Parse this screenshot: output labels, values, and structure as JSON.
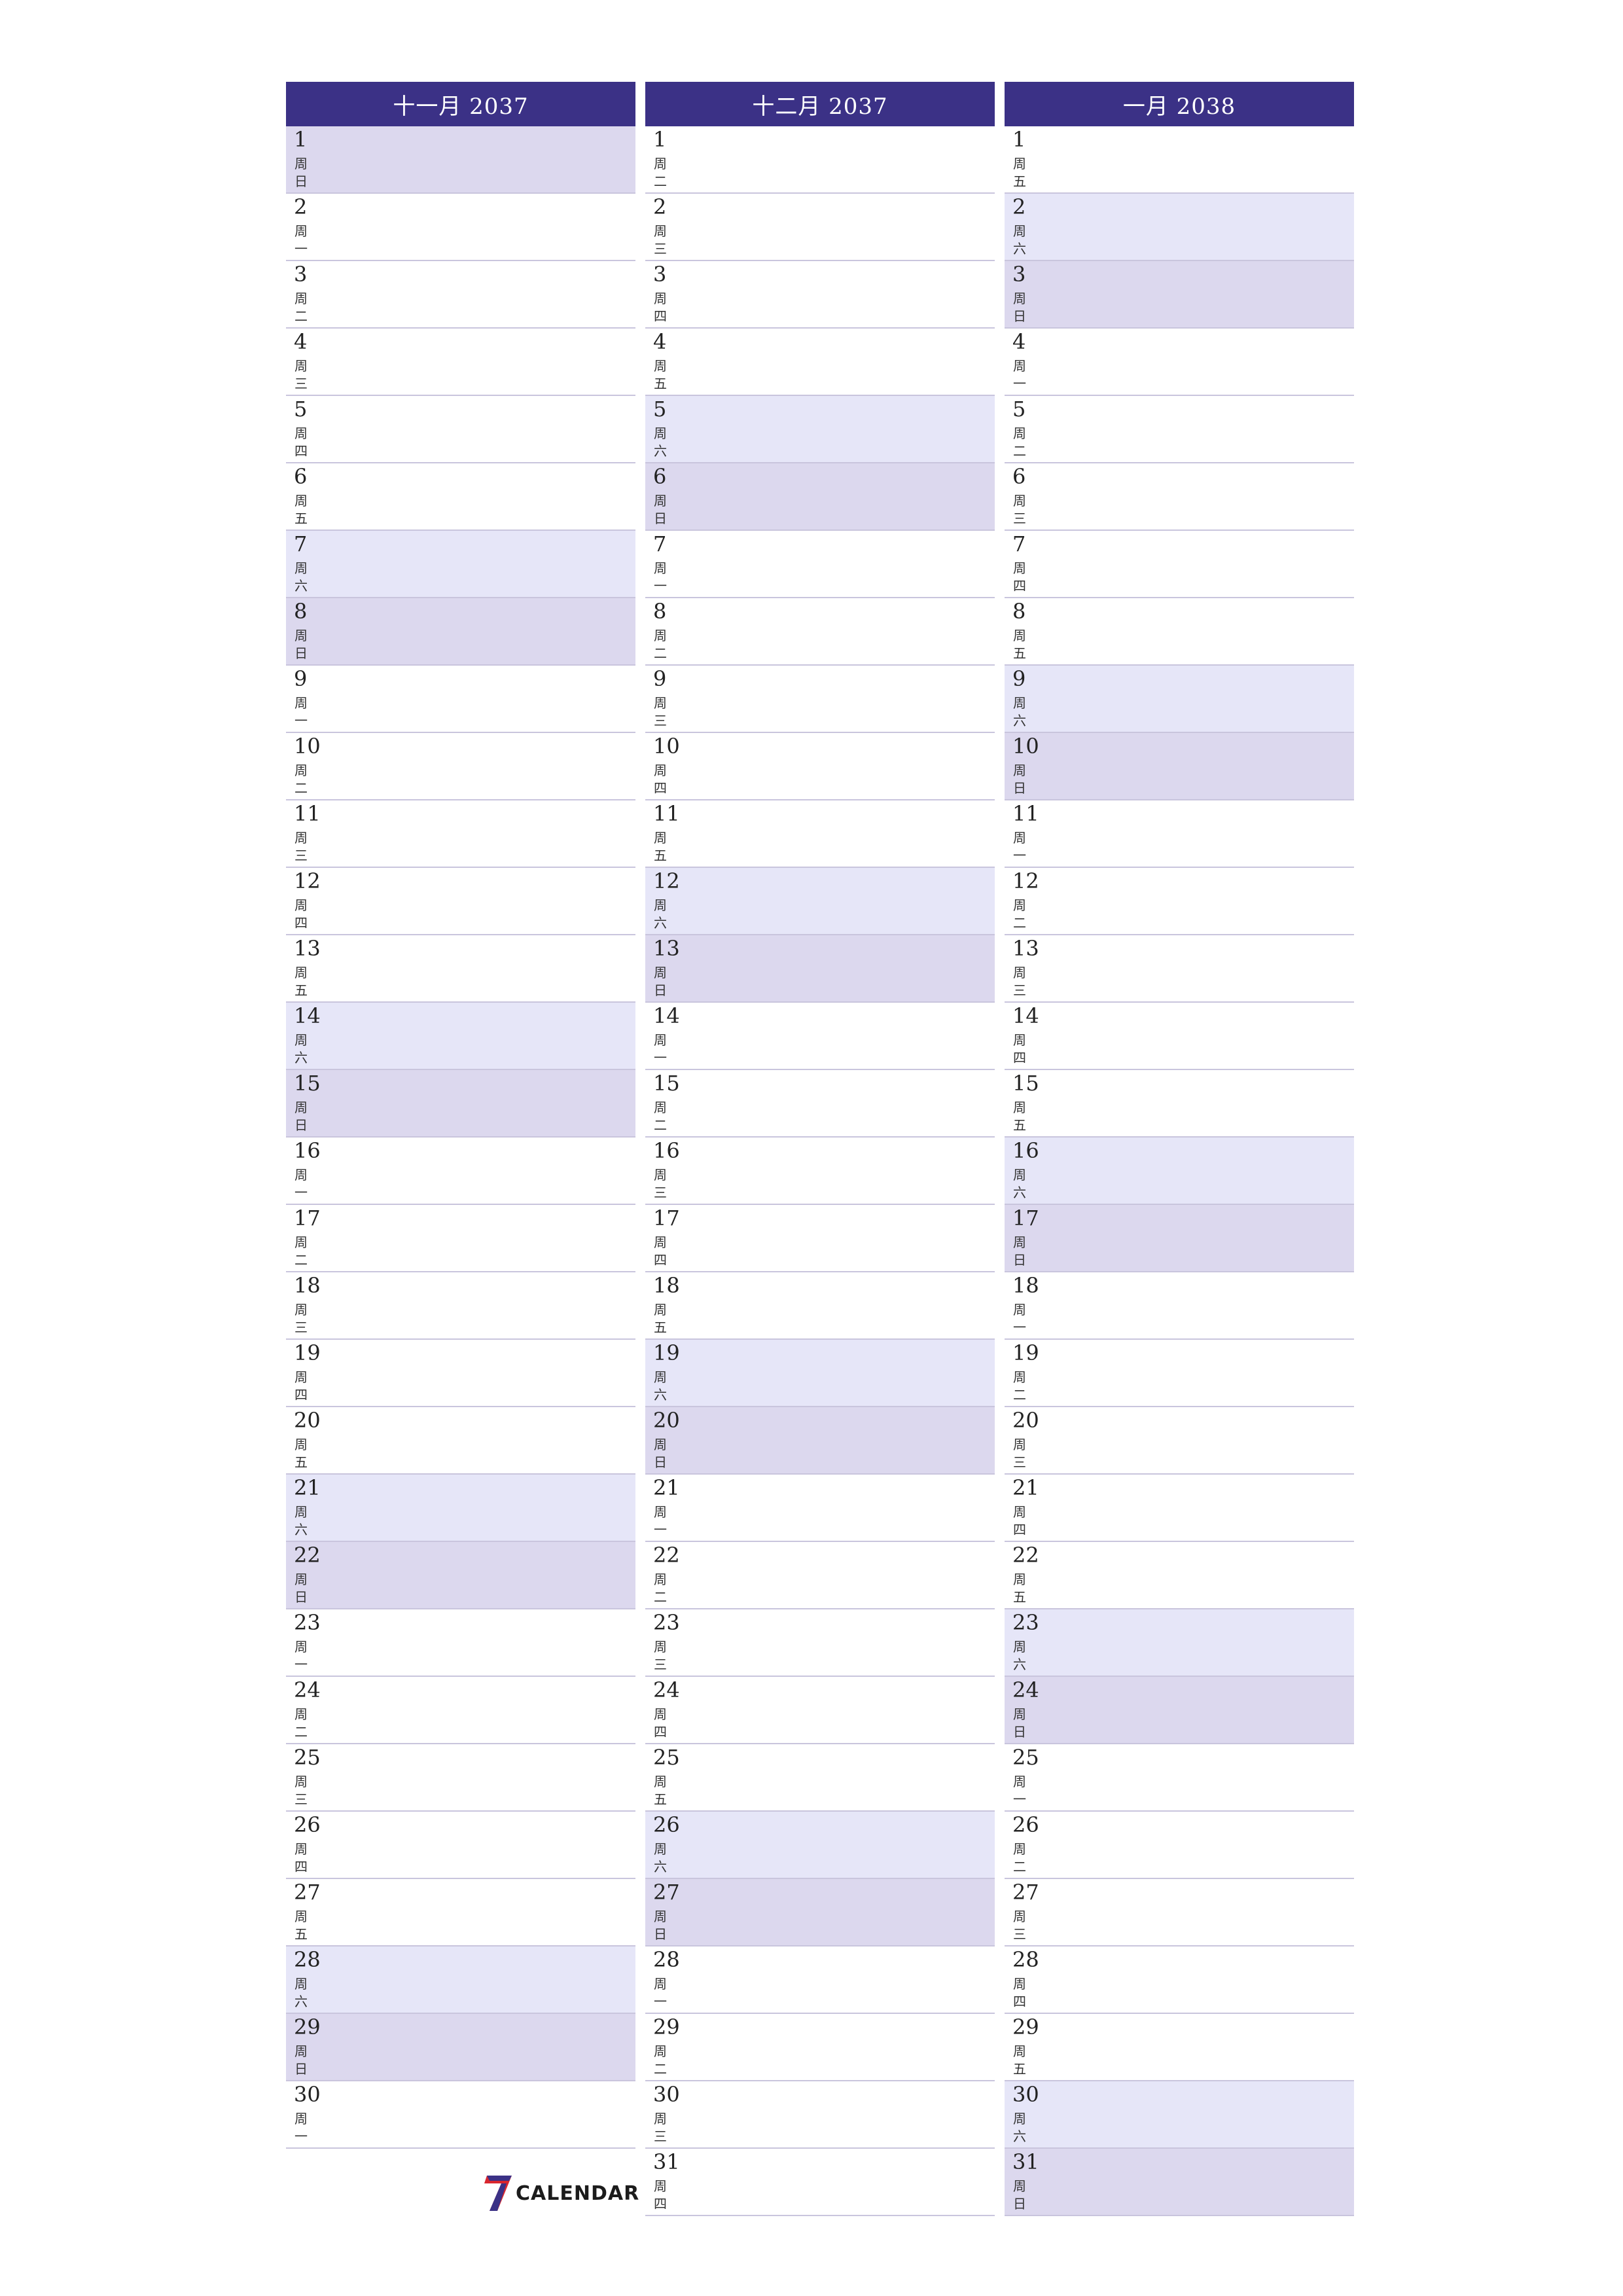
{
  "months": [
    {
      "title": "十一月 2037",
      "days": [
        {
          "num": "1",
          "wd": "周日",
          "type": "sun"
        },
        {
          "num": "2",
          "wd": "周一",
          "type": ""
        },
        {
          "num": "3",
          "wd": "周二",
          "type": ""
        },
        {
          "num": "4",
          "wd": "周三",
          "type": ""
        },
        {
          "num": "5",
          "wd": "周四",
          "type": ""
        },
        {
          "num": "6",
          "wd": "周五",
          "type": ""
        },
        {
          "num": "7",
          "wd": "周六",
          "type": "sat"
        },
        {
          "num": "8",
          "wd": "周日",
          "type": "sun"
        },
        {
          "num": "9",
          "wd": "周一",
          "type": ""
        },
        {
          "num": "10",
          "wd": "周二",
          "type": ""
        },
        {
          "num": "11",
          "wd": "周三",
          "type": ""
        },
        {
          "num": "12",
          "wd": "周四",
          "type": ""
        },
        {
          "num": "13",
          "wd": "周五",
          "type": ""
        },
        {
          "num": "14",
          "wd": "周六",
          "type": "sat"
        },
        {
          "num": "15",
          "wd": "周日",
          "type": "sun"
        },
        {
          "num": "16",
          "wd": "周一",
          "type": ""
        },
        {
          "num": "17",
          "wd": "周二",
          "type": ""
        },
        {
          "num": "18",
          "wd": "周三",
          "type": ""
        },
        {
          "num": "19",
          "wd": "周四",
          "type": ""
        },
        {
          "num": "20",
          "wd": "周五",
          "type": ""
        },
        {
          "num": "21",
          "wd": "周六",
          "type": "sat"
        },
        {
          "num": "22",
          "wd": "周日",
          "type": "sun"
        },
        {
          "num": "23",
          "wd": "周一",
          "type": ""
        },
        {
          "num": "24",
          "wd": "周二",
          "type": ""
        },
        {
          "num": "25",
          "wd": "周三",
          "type": ""
        },
        {
          "num": "26",
          "wd": "周四",
          "type": ""
        },
        {
          "num": "27",
          "wd": "周五",
          "type": ""
        },
        {
          "num": "28",
          "wd": "周六",
          "type": "sat"
        },
        {
          "num": "29",
          "wd": "周日",
          "type": "sun"
        },
        {
          "num": "30",
          "wd": "周一",
          "type": ""
        }
      ]
    },
    {
      "title": "十二月 2037",
      "days": [
        {
          "num": "1",
          "wd": "周二",
          "type": ""
        },
        {
          "num": "2",
          "wd": "周三",
          "type": ""
        },
        {
          "num": "3",
          "wd": "周四",
          "type": ""
        },
        {
          "num": "4",
          "wd": "周五",
          "type": ""
        },
        {
          "num": "5",
          "wd": "周六",
          "type": "sat"
        },
        {
          "num": "6",
          "wd": "周日",
          "type": "sun"
        },
        {
          "num": "7",
          "wd": "周一",
          "type": ""
        },
        {
          "num": "8",
          "wd": "周二",
          "type": ""
        },
        {
          "num": "9",
          "wd": "周三",
          "type": ""
        },
        {
          "num": "10",
          "wd": "周四",
          "type": ""
        },
        {
          "num": "11",
          "wd": "周五",
          "type": ""
        },
        {
          "num": "12",
          "wd": "周六",
          "type": "sat"
        },
        {
          "num": "13",
          "wd": "周日",
          "type": "sun"
        },
        {
          "num": "14",
          "wd": "周一",
          "type": ""
        },
        {
          "num": "15",
          "wd": "周二",
          "type": ""
        },
        {
          "num": "16",
          "wd": "周三",
          "type": ""
        },
        {
          "num": "17",
          "wd": "周四",
          "type": ""
        },
        {
          "num": "18",
          "wd": "周五",
          "type": ""
        },
        {
          "num": "19",
          "wd": "周六",
          "type": "sat"
        },
        {
          "num": "20",
          "wd": "周日",
          "type": "sun"
        },
        {
          "num": "21",
          "wd": "周一",
          "type": ""
        },
        {
          "num": "22",
          "wd": "周二",
          "type": ""
        },
        {
          "num": "23",
          "wd": "周三",
          "type": ""
        },
        {
          "num": "24",
          "wd": "周四",
          "type": ""
        },
        {
          "num": "25",
          "wd": "周五",
          "type": ""
        },
        {
          "num": "26",
          "wd": "周六",
          "type": "sat"
        },
        {
          "num": "27",
          "wd": "周日",
          "type": "sun"
        },
        {
          "num": "28",
          "wd": "周一",
          "type": ""
        },
        {
          "num": "29",
          "wd": "周二",
          "type": ""
        },
        {
          "num": "30",
          "wd": "周三",
          "type": ""
        },
        {
          "num": "31",
          "wd": "周四",
          "type": ""
        }
      ]
    },
    {
      "title": "一月 2038",
      "days": [
        {
          "num": "1",
          "wd": "周五",
          "type": ""
        },
        {
          "num": "2",
          "wd": "周六",
          "type": "sat"
        },
        {
          "num": "3",
          "wd": "周日",
          "type": "sun"
        },
        {
          "num": "4",
          "wd": "周一",
          "type": ""
        },
        {
          "num": "5",
          "wd": "周二",
          "type": ""
        },
        {
          "num": "6",
          "wd": "周三",
          "type": ""
        },
        {
          "num": "7",
          "wd": "周四",
          "type": ""
        },
        {
          "num": "8",
          "wd": "周五",
          "type": ""
        },
        {
          "num": "9",
          "wd": "周六",
          "type": "sat"
        },
        {
          "num": "10",
          "wd": "周日",
          "type": "sun"
        },
        {
          "num": "11",
          "wd": "周一",
          "type": ""
        },
        {
          "num": "12",
          "wd": "周二",
          "type": ""
        },
        {
          "num": "13",
          "wd": "周三",
          "type": ""
        },
        {
          "num": "14",
          "wd": "周四",
          "type": ""
        },
        {
          "num": "15",
          "wd": "周五",
          "type": ""
        },
        {
          "num": "16",
          "wd": "周六",
          "type": "sat"
        },
        {
          "num": "17",
          "wd": "周日",
          "type": "sun"
        },
        {
          "num": "18",
          "wd": "周一",
          "type": ""
        },
        {
          "num": "19",
          "wd": "周二",
          "type": ""
        },
        {
          "num": "20",
          "wd": "周三",
          "type": ""
        },
        {
          "num": "21",
          "wd": "周四",
          "type": ""
        },
        {
          "num": "22",
          "wd": "周五",
          "type": ""
        },
        {
          "num": "23",
          "wd": "周六",
          "type": "sat"
        },
        {
          "num": "24",
          "wd": "周日",
          "type": "sun"
        },
        {
          "num": "25",
          "wd": "周一",
          "type": ""
        },
        {
          "num": "26",
          "wd": "周二",
          "type": ""
        },
        {
          "num": "27",
          "wd": "周三",
          "type": ""
        },
        {
          "num": "28",
          "wd": "周四",
          "type": ""
        },
        {
          "num": "29",
          "wd": "周五",
          "type": ""
        },
        {
          "num": "30",
          "wd": "周六",
          "type": "sat"
        },
        {
          "num": "31",
          "wd": "周日",
          "type": "sun"
        }
      ]
    }
  ],
  "logo": {
    "text": "CALENDAR",
    "icon": "seven-logo-icon"
  },
  "colors": {
    "header": "#3b3186",
    "saturday": "#e6e6f8",
    "sunday": "#dcd8ee",
    "divider": "#c9c5dd"
  }
}
